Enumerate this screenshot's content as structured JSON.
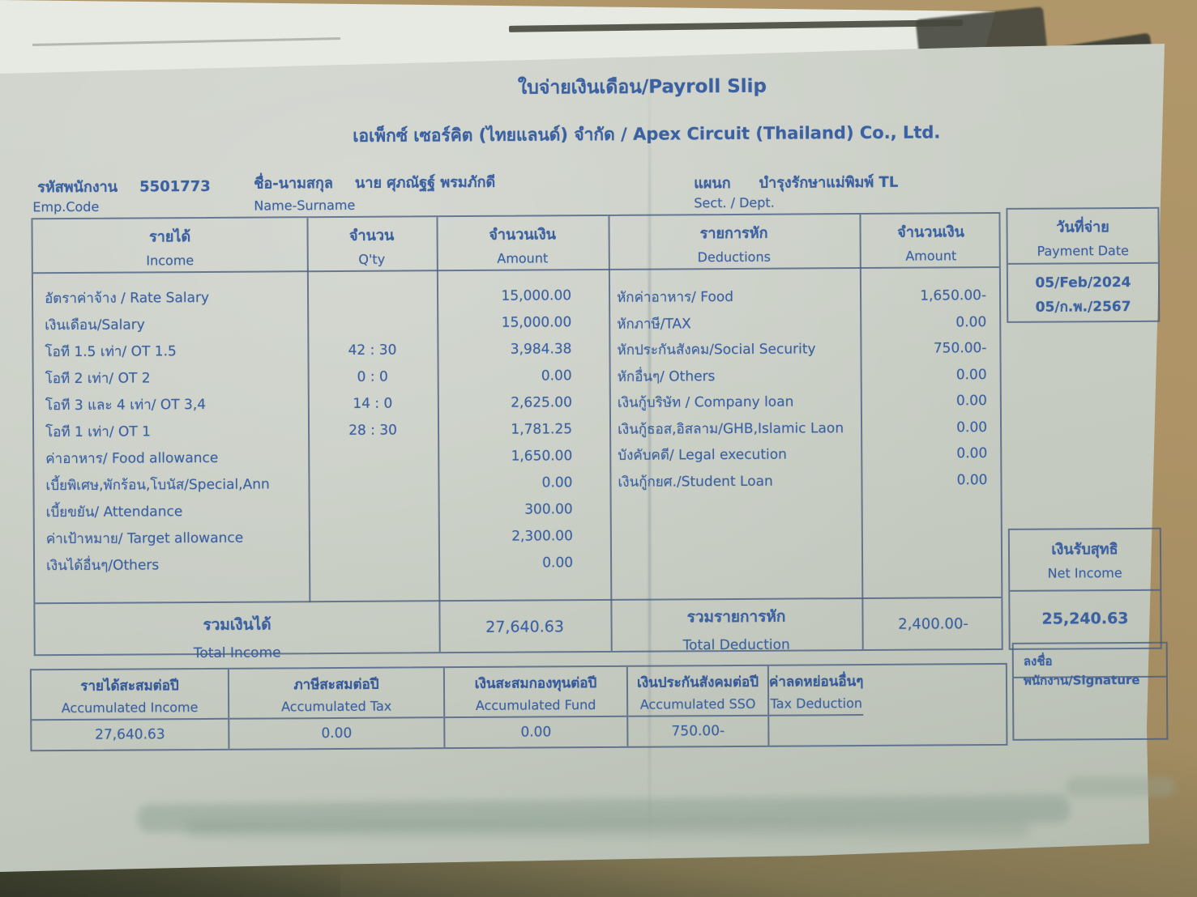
{
  "colors": {
    "ink_blue": "#3c61a1",
    "paper": "#c8cdc4",
    "backdrop_tan": "#ab9164",
    "table_line": "#4b5f82"
  },
  "doc": {
    "title": "ใบจ่ายเงินเดือน/Payroll Slip",
    "company": "เอเพ็กซ์ เซอร์คิต (ไทยแลนด์) จำกัด / Apex Circuit (Thailand) Co., Ltd."
  },
  "employee": {
    "code_label_th": "รหัสพนักงาน",
    "code_label_en": "Emp.Code",
    "code": "5501773",
    "name_label_th": "ชื่อ-นามสกุล",
    "name_label_en": "Name-Surname",
    "name": "นาย ศุภณัฐฐ์ พรมภักดี",
    "dept_label_th": "แผนก",
    "dept_label_en": "Sect. / Dept.",
    "dept": "บำรุงรักษาแม่พิมพ์ TL"
  },
  "table": {
    "headers": {
      "income_th": "รายได้",
      "income_en": "Income",
      "qty_th": "จำนวน",
      "qty_en": "Q'ty",
      "amount_th": "จำนวนเงิน",
      "amount_en": "Amount",
      "deductions_th": "รายการหัก",
      "deductions_en": "Deductions",
      "ded_amount_th": "จำนวนเงิน",
      "ded_amount_en": "Amount",
      "payment_date_th": "วันที่จ่าย",
      "payment_date_en": "Payment Date"
    },
    "income_rows": [
      {
        "label": "อัตราค่าจ้าง / Rate Salary",
        "qty": "",
        "amount": "15,000.00"
      },
      {
        "label": "เงินเดือน/Salary",
        "qty": "",
        "amount": "15,000.00"
      },
      {
        "label": "โอที 1.5 เท่า/ OT 1.5",
        "qty": "42 : 30",
        "amount": "3,984.38"
      },
      {
        "label": "โอที 2 เท่า/ OT 2",
        "qty": "0 : 0",
        "amount": "0.00"
      },
      {
        "label": "โอที 3 และ 4 เท่า/ OT 3,4",
        "qty": "14 : 0",
        "amount": "2,625.00"
      },
      {
        "label": "โอที 1 เท่า/ OT 1",
        "qty": "28 : 30",
        "amount": "1,781.25"
      },
      {
        "label": "ค่าอาหาร/ Food allowance",
        "qty": "",
        "amount": "1,650.00"
      },
      {
        "label": "เบี้ยพิเศษ,พักร้อน,โบนัส/Special,Ann",
        "qty": "",
        "amount": "0.00"
      },
      {
        "label": "เบี้ยขยัน/ Attendance",
        "qty": "",
        "amount": "300.00"
      },
      {
        "label": "ค่าเป้าหมาย/ Target allowance",
        "qty": "",
        "amount": "2,300.00"
      },
      {
        "label": "เงินได้อื่นๆ/Others",
        "qty": "",
        "amount": "0.00"
      }
    ],
    "deduction_rows": [
      {
        "label": "หักค่าอาหาร/ Food",
        "amount": "1,650.00-"
      },
      {
        "label": "หักภาษี/TAX",
        "amount": "0.00"
      },
      {
        "label": "หักประกันสังคม/Social Security",
        "amount": "750.00-"
      },
      {
        "label": "หักอื่นๆ/ Others",
        "amount": "0.00"
      },
      {
        "label": "เงินกู้บริษัท / Company loan",
        "amount": "0.00"
      },
      {
        "label": "เงินกู้ธอส,อิสลาม/GHB,Islamic Laon",
        "amount": "0.00"
      },
      {
        "label": "บังคับคดี/ Legal execution",
        "amount": "0.00"
      },
      {
        "label": "เงินกู้กยศ./Student Loan",
        "amount": "0.00"
      }
    ],
    "payment_date_value_en": "05/Feb/2024",
    "payment_date_value_th": "05/ก.พ./2567",
    "totals": {
      "income_label_th": "รวมเงินได้",
      "income_label_en": "Total Income",
      "income_value": "27,640.63",
      "deduction_label_th": "รวมรายการหัก",
      "deduction_label_en": "Total Deduction",
      "deduction_value": "2,400.00-",
      "net_label_th": "เงินรับสุทธิ",
      "net_label_en": "Net Income",
      "net_value": "25,240.63"
    }
  },
  "accumulated": {
    "columns": [
      {
        "label_th": "รายได้สะสมต่อปี",
        "label_en": "Accumulated Income",
        "value": "27,640.63"
      },
      {
        "label_th": "ภาษีสะสมต่อปี",
        "label_en": "Accumulated Tax",
        "value": "0.00"
      },
      {
        "label_th": "เงินสะสมกองทุนต่อปี",
        "label_en": "Accumulated Fund",
        "value": "0.00"
      },
      {
        "label_th": "เงินประกันสังคมต่อปี",
        "label_en": "Accumulated SSO",
        "value": "750.00-"
      },
      {
        "label_th": "ค่าลดหย่อนอื่นๆ",
        "label_en": "Tax Deduction",
        "value": ""
      }
    ],
    "signature_label": "ลงชื่อพนักงาน/Signature"
  }
}
